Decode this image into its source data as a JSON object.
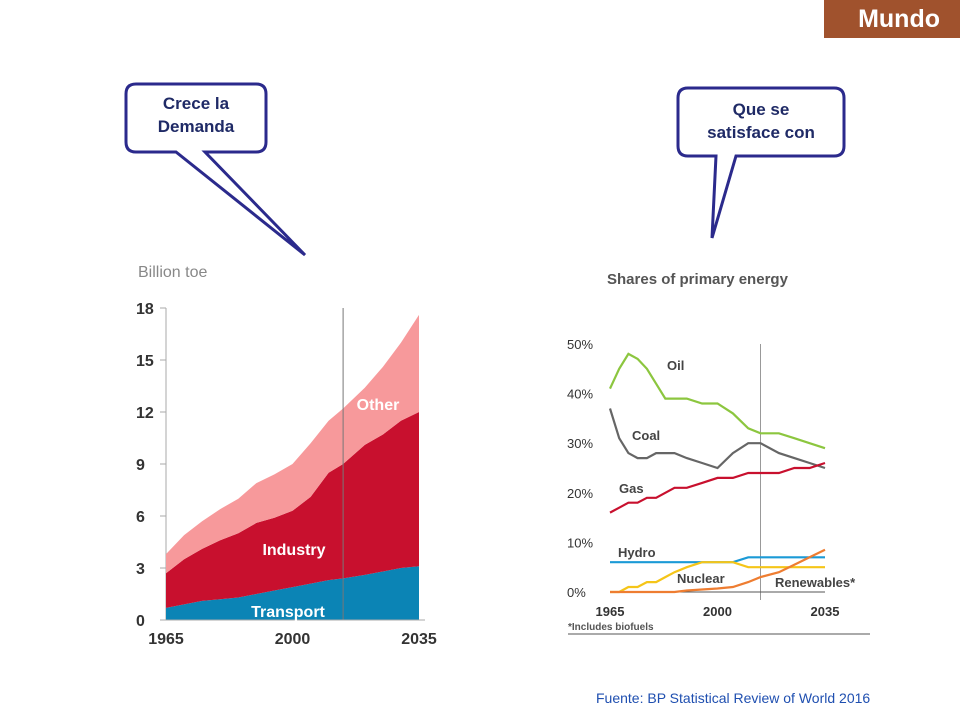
{
  "header": {
    "badge": "Mundo"
  },
  "callouts": {
    "left": [
      "Crece la",
      "Demanda"
    ],
    "right": [
      "Que se",
      "satisface con"
    ]
  },
  "footer": {
    "source": "Fuente: BP Statistical Review of World 2016"
  },
  "colors": {
    "transport": "#0b84b5",
    "industry": "#c8102e",
    "other": "#f7999b",
    "oil": "#8cc63f",
    "coal": "#666666",
    "gas": "#c8102e",
    "hydro": "#1b9ad6",
    "nuclear": "#f5c518",
    "renewables": "#ee7d31",
    "callout_border": "#2b2a8c",
    "badge": "#a0522d"
  },
  "chart_data": [
    {
      "type": "area",
      "stacked": true,
      "ylabel": "Billion toe",
      "ylim": [
        0,
        18
      ],
      "yticks": [
        "0",
        "3",
        "6",
        "9",
        "12",
        "15",
        "18"
      ],
      "xticks": [
        "1965",
        "2000",
        "2035"
      ],
      "xlim": [
        1965,
        2035
      ],
      "divider_year": 2014,
      "x": [
        1965,
        1970,
        1975,
        1980,
        1985,
        1990,
        1995,
        2000,
        2005,
        2010,
        2014,
        2020,
        2025,
        2030,
        2035
      ],
      "series": [
        {
          "name": "Transport",
          "values": [
            0.7,
            0.9,
            1.1,
            1.2,
            1.3,
            1.5,
            1.7,
            1.9,
            2.1,
            2.3,
            2.4,
            2.6,
            2.8,
            3.0,
            3.1
          ]
        },
        {
          "name": "Industry",
          "values": [
            2.0,
            2.6,
            3.0,
            3.4,
            3.7,
            4.1,
            4.2,
            4.4,
            5.0,
            6.2,
            6.6,
            7.5,
            7.9,
            8.5,
            8.9
          ]
        },
        {
          "name": "Other",
          "values": [
            1.1,
            1.4,
            1.6,
            1.8,
            2.0,
            2.3,
            2.5,
            2.7,
            3.1,
            3.0,
            3.2,
            3.3,
            3.9,
            4.5,
            5.6
          ]
        }
      ]
    },
    {
      "type": "line",
      "title": "Shares of primary energy",
      "ylim": [
        0,
        50
      ],
      "yticks": [
        "0%",
        "10%",
        "20%",
        "30%",
        "40%",
        "50%"
      ],
      "xticks": [
        "1965",
        "2000",
        "2035"
      ],
      "xlim": [
        1965,
        2035
      ],
      "divider_year": 2014,
      "footnote": "*Includes biofuels",
      "x": [
        1965,
        1968,
        1971,
        1974,
        1977,
        1980,
        1983,
        1986,
        1990,
        1995,
        2000,
        2005,
        2010,
        2014,
        2020,
        2025,
        2030,
        2035
      ],
      "series": [
        {
          "name": "Oil",
          "values": [
            41,
            45,
            48,
            47,
            45,
            42,
            39,
            39,
            39,
            38,
            38,
            36,
            33,
            32,
            32,
            31,
            30,
            29
          ]
        },
        {
          "name": "Coal",
          "values": [
            37,
            31,
            28,
            27,
            27,
            28,
            28,
            28,
            27,
            26,
            25,
            28,
            30,
            30,
            28,
            27,
            26,
            25
          ]
        },
        {
          "name": "Gas",
          "values": [
            16,
            17,
            18,
            18,
            19,
            19,
            20,
            21,
            21,
            22,
            23,
            23,
            24,
            24,
            24,
            25,
            25,
            26
          ]
        },
        {
          "name": "Hydro",
          "values": [
            6,
            6,
            6,
            6,
            6,
            6,
            6,
            6,
            6,
            6,
            6,
            6,
            7,
            7,
            7,
            7,
            7,
            7
          ]
        },
        {
          "name": "Nuclear",
          "values": [
            0,
            0,
            1,
            1,
            2,
            2,
            3,
            4,
            5,
            6,
            6,
            6,
            5,
            5,
            5,
            5,
            5,
            5
          ]
        },
        {
          "name": "Renewables*",
          "values": [
            0,
            0,
            0,
            0,
            0,
            0,
            0,
            0,
            0.3,
            0.5,
            0.7,
            1,
            2,
            3,
            4,
            5.5,
            7,
            8.5
          ]
        }
      ]
    }
  ]
}
